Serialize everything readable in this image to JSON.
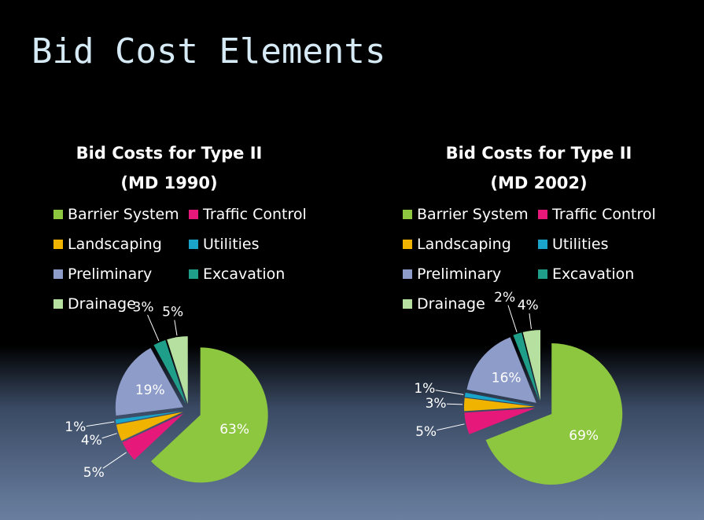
{
  "slide_title": "Bid Cost Elements",
  "chart_data": [
    {
      "type": "pie",
      "title": "Bid Costs for Type II (MD 1990)",
      "categories": [
        "Barrier System",
        "Traffic Control",
        "Landscaping",
        "Utilities",
        "Preliminary",
        "Excavation",
        "Drainage"
      ],
      "values": [
        63,
        5,
        4,
        1,
        19,
        3,
        5
      ],
      "value_labels": [
        "63%",
        "5%",
        "4%",
        "1%",
        "19%",
        "3%",
        "5%"
      ],
      "colors": [
        "#8dc63f",
        "#e6197a",
        "#f0b400",
        "#1ba4c9",
        "#8e9cc9",
        "#1f9e89",
        "#b5e0a0"
      ]
    },
    {
      "type": "pie",
      "title": "Bid Costs for Type II (MD 2002)",
      "categories": [
        "Barrier System",
        "Traffic Control",
        "Landscaping",
        "Utilities",
        "Preliminary",
        "Excavation",
        "Drainage"
      ],
      "values": [
        69,
        5,
        3,
        1,
        16,
        2,
        4
      ],
      "value_labels": [
        "69%",
        "5%",
        "3%",
        "1%",
        "16%",
        "2%",
        "4%"
      ],
      "colors": [
        "#8dc63f",
        "#e6197a",
        "#f0b400",
        "#1ba4c9",
        "#8e9cc9",
        "#1f9e89",
        "#b5e0a0"
      ]
    }
  ]
}
